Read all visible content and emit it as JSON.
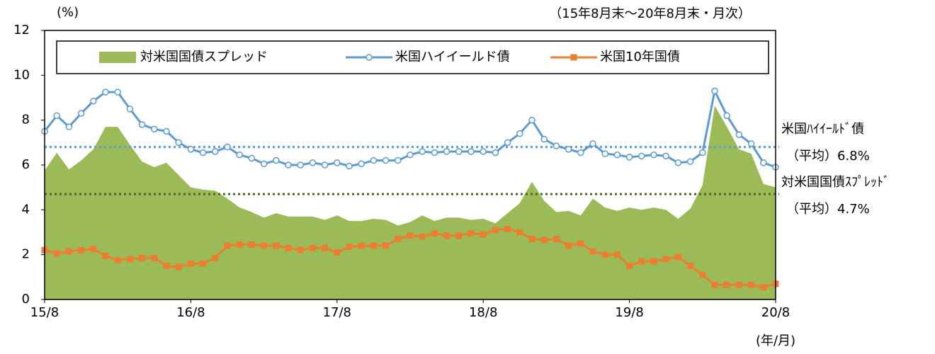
{
  "chart_data": {
    "type": "combo",
    "y_unit": "(%)",
    "subtitle": "（15年8月末～20年8月末・月次）",
    "x_label": "(年/月)",
    "categories": [
      "15/8",
      null,
      null,
      null,
      null,
      null,
      null,
      null,
      null,
      null,
      null,
      null,
      "16/8",
      null,
      null,
      null,
      null,
      null,
      null,
      null,
      null,
      null,
      null,
      null,
      "17/8",
      null,
      null,
      null,
      null,
      null,
      null,
      null,
      null,
      null,
      null,
      null,
      "18/8",
      null,
      null,
      null,
      null,
      null,
      null,
      null,
      null,
      null,
      null,
      null,
      "19/8",
      null,
      null,
      null,
      null,
      null,
      null,
      null,
      null,
      null,
      null,
      null,
      "20/8"
    ],
    "series": [
      {
        "name": "対米国国債スプレッド",
        "kind": "area",
        "color": "#9bbb59",
        "values": [
          5.75,
          6.55,
          5.8,
          6.2,
          6.7,
          7.7,
          7.7,
          6.9,
          6.15,
          5.9,
          6.1,
          5.55,
          5.0,
          4.9,
          4.85,
          4.5,
          4.1,
          3.9,
          3.65,
          3.85,
          3.7,
          3.7,
          3.7,
          3.55,
          3.75,
          3.5,
          3.5,
          3.6,
          3.55,
          3.3,
          3.45,
          3.75,
          3.5,
          3.65,
          3.65,
          3.55,
          3.6,
          3.4,
          3.85,
          4.3,
          5.25,
          4.4,
          3.9,
          3.95,
          3.75,
          4.5,
          4.1,
          3.95,
          4.1,
          4.0,
          4.1,
          4.0,
          3.6,
          4.05,
          5.1,
          8.65,
          7.7,
          6.7,
          6.5,
          5.15,
          5.0
        ]
      },
      {
        "name": "米国ハイイールド債",
        "kind": "line",
        "marker": "circle",
        "color": "#5b9bd5",
        "values": [
          7.5,
          8.2,
          7.7,
          8.3,
          8.85,
          9.25,
          9.25,
          8.5,
          7.8,
          7.6,
          7.5,
          7.0,
          6.7,
          6.55,
          6.6,
          6.8,
          6.45,
          6.3,
          6.05,
          6.2,
          6.0,
          6.0,
          6.1,
          6.0,
          6.1,
          5.95,
          6.05,
          6.2,
          6.2,
          6.2,
          6.45,
          6.6,
          6.55,
          6.6,
          6.6,
          6.6,
          6.6,
          6.55,
          7.0,
          7.4,
          8.0,
          7.15,
          6.85,
          6.7,
          6.55,
          6.95,
          6.5,
          6.45,
          6.35,
          6.4,
          6.45,
          6.4,
          6.1,
          6.15,
          6.55,
          9.3,
          8.2,
          7.35,
          6.95,
          6.1,
          5.9
        ]
      },
      {
        "name": "米国10年国債",
        "kind": "line",
        "marker": "square",
        "color": "#ed7d31",
        "values": [
          2.2,
          2.05,
          2.15,
          2.2,
          2.25,
          1.95,
          1.75,
          1.8,
          1.85,
          1.85,
          1.5,
          1.45,
          1.6,
          1.6,
          1.85,
          2.4,
          2.45,
          2.45,
          2.4,
          2.4,
          2.3,
          2.2,
          2.3,
          2.3,
          2.1,
          2.35,
          2.4,
          2.4,
          2.4,
          2.7,
          2.85,
          2.8,
          2.95,
          2.85,
          2.85,
          2.95,
          2.9,
          3.1,
          3.15,
          3.0,
          2.7,
          2.65,
          2.7,
          2.4,
          2.5,
          2.15,
          2.0,
          2.0,
          1.5,
          1.7,
          1.7,
          1.8,
          1.9,
          1.5,
          1.1,
          0.65,
          0.65,
          0.65,
          0.65,
          0.55,
          0.7
        ]
      }
    ],
    "reference_lines": [
      {
        "name": "米国ﾊｲｲｰﾙﾄﾞ債",
        "value": 6.8,
        "value_label": "（平均）6.8%",
        "color": "#5b9bd5",
        "text_color": "#5b9bd5"
      },
      {
        "name": "対米国国債ｽﾌﾟﾚｯﾄﾞ",
        "value": 4.7,
        "value_label": "（平均）4.7%",
        "color": "#4f6228",
        "text_color": "#4f6228"
      }
    ],
    "ylim": [
      0,
      12
    ],
    "yticks": [
      0,
      2,
      4,
      6,
      8,
      10,
      12
    ],
    "legend": "top"
  }
}
